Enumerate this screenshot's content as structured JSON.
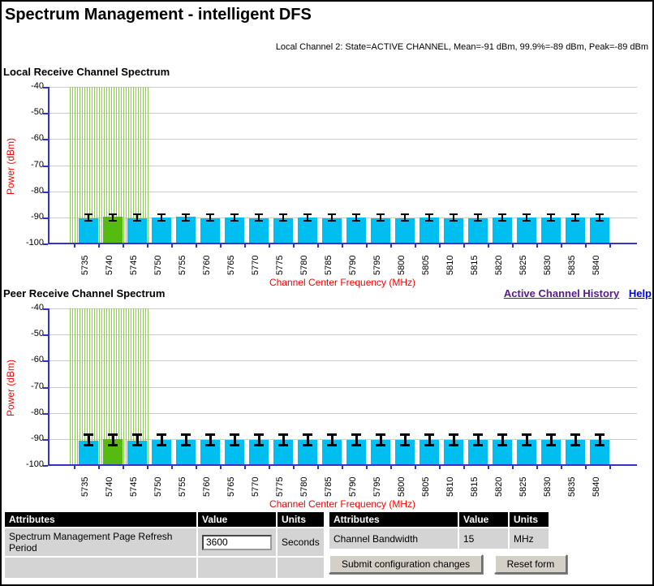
{
  "page": {
    "title": "Spectrum Management - intelligent DFS",
    "status_line": "Local Channel 2: State=ACTIVE CHANNEL, Mean=-91 dBm, 99.9%=-89 dBm, Peak=-89 dBm"
  },
  "links": {
    "active_channel_history": "Active Channel History",
    "help": "Help"
  },
  "colors": {
    "bar": "#00bef0",
    "active_bar": "#55bb11",
    "hatch_green": "#8bd14b",
    "axis_blue": "#3333cc",
    "grid_gray": "#cccccc",
    "axis_label_red": "#ff0000",
    "visited_link": "#551a8b",
    "link": "#0000ee"
  },
  "chart_data": [
    {
      "type": "bar",
      "title": "Local Receive Channel Spectrum",
      "ylabel": "Power (dBm)",
      "xlabel": "Channel Center Frequency (MHz)",
      "ylim": [
        -100,
        -40
      ],
      "yticks": [
        -40,
        -50,
        -60,
        -70,
        -80,
        -90,
        -100
      ],
      "grid": true,
      "categories": [
        5735,
        5740,
        5745,
        5750,
        5755,
        5760,
        5765,
        5770,
        5775,
        5780,
        5785,
        5790,
        5795,
        5800,
        5805,
        5810,
        5815,
        5820,
        5825,
        5830,
        5835,
        5840
      ],
      "values": [
        -90.4,
        -89.7,
        -90.4,
        -90.1,
        -89.6,
        -90.4,
        -90.2,
        -90.3,
        -90.3,
        -90.2,
        -90.3,
        -90.2,
        -90.3,
        -90.3,
        -90.2,
        -90.4,
        -90.3,
        -90.0,
        -90.0,
        -90.0,
        -90.1,
        -90.0
      ],
      "active_channel": 5740,
      "active_region_mhz": [
        5732.5,
        5747.5
      ],
      "error_bar": {
        "high": -88.9,
        "low": -91.4,
        "cap_w": 10,
        "stem_w": 2,
        "cap_h": 2
      }
    },
    {
      "type": "bar",
      "title": "Peer Receive Channel Spectrum",
      "ylabel": "Power (dBm)",
      "xlabel": "Channel Center Frequency (MHz)",
      "ylim": [
        -100,
        -40
      ],
      "yticks": [
        -40,
        -50,
        -60,
        -70,
        -80,
        -90,
        -100
      ],
      "grid": true,
      "categories": [
        5735,
        5740,
        5745,
        5750,
        5755,
        5760,
        5765,
        5770,
        5775,
        5780,
        5785,
        5790,
        5795,
        5800,
        5805,
        5810,
        5815,
        5820,
        5825,
        5830,
        5835,
        5840
      ],
      "values": [
        -90.6,
        -90.1,
        -90.6,
        -90.3,
        -90.3,
        -90.5,
        -90.4,
        -90.4,
        -90.5,
        -90.5,
        -90.4,
        -90.5,
        -90.5,
        -90.4,
        -90.5,
        -90.5,
        -90.5,
        -90.4,
        -90.4,
        -90.3,
        -90.3,
        -90.3
      ],
      "active_channel": 5740,
      "active_region_mhz": [
        5732.5,
        5747.5
      ],
      "error_bar": {
        "high": -88.3,
        "low": -92.4,
        "cap_w": 12,
        "stem_w": 3,
        "cap_h": 3
      }
    }
  ],
  "tables": {
    "left": {
      "headers": [
        "Attributes",
        "Value",
        "Units"
      ],
      "rows": [
        {
          "attribute": "Spectrum Management Page Refresh Period",
          "value": "3600",
          "units": "Seconds"
        },
        {
          "attribute": "",
          "value": "",
          "units": ""
        }
      ]
    },
    "right": {
      "headers": [
        "Attributes",
        "Value",
        "Units"
      ],
      "rows": [
        {
          "attribute": "Channel Bandwidth",
          "value": "15",
          "units": "MHz"
        }
      ]
    }
  },
  "buttons": {
    "submit": "Submit configuration changes",
    "reset": "Reset form"
  }
}
